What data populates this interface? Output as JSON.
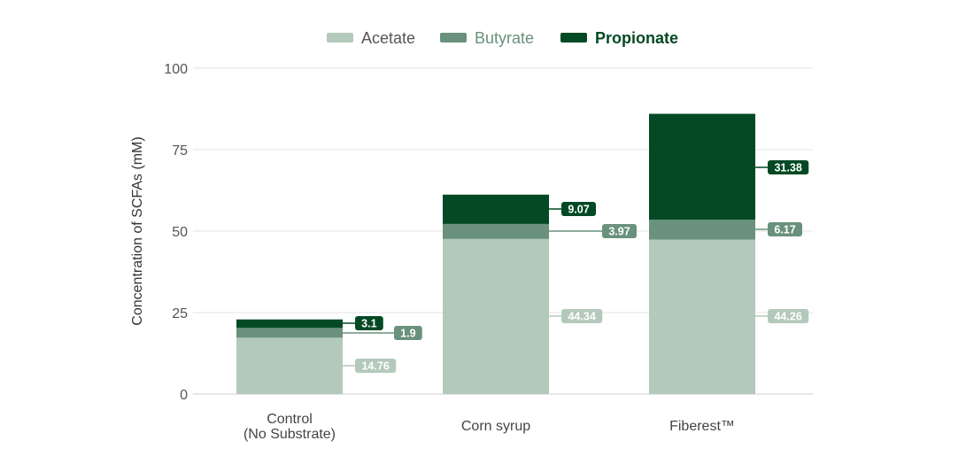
{
  "chart_data": {
    "type": "bar",
    "stacked": true,
    "title": "",
    "xlabel": "",
    "ylabel": "Concentration of SCFAs (mM)",
    "ylim": [
      0,
      100
    ],
    "yticks": [
      0,
      25,
      50,
      75,
      100
    ],
    "grid": true,
    "legend_position": "top-center",
    "categories": [
      {
        "line1": "Control",
        "line2": "(No Substrate)"
      },
      {
        "line1": "Corn syrup",
        "line2": ""
      },
      {
        "line1": "Fiberest™",
        "line2": ""
      }
    ],
    "series": [
      {
        "name": "Acetate",
        "color": "#b3c9bc",
        "label_text_color": "#ffffff",
        "values": [
          14.76,
          44.34,
          44.26
        ],
        "labels": [
          "14.76",
          "44.34",
          "44.26"
        ],
        "stack_values": [
          17.3,
          47.6,
          47.4
        ]
      },
      {
        "name": "Butyrate",
        "color": "#6a917c",
        "label_text_color": "#ffffff",
        "values": [
          1.9,
          3.97,
          6.17
        ],
        "labels": [
          "1.9",
          "3.97",
          "6.17"
        ],
        "stack_values": [
          3.0,
          4.6,
          6.1
        ]
      },
      {
        "name": "Propionate",
        "color": "#034924",
        "label_text_color": "#ffffff",
        "values": [
          3.1,
          9.07,
          31.38
        ],
        "labels": [
          "3.1",
          "9.07",
          "31.38"
        ],
        "stack_values": [
          2.6,
          9.0,
          32.5
        ]
      }
    ]
  }
}
